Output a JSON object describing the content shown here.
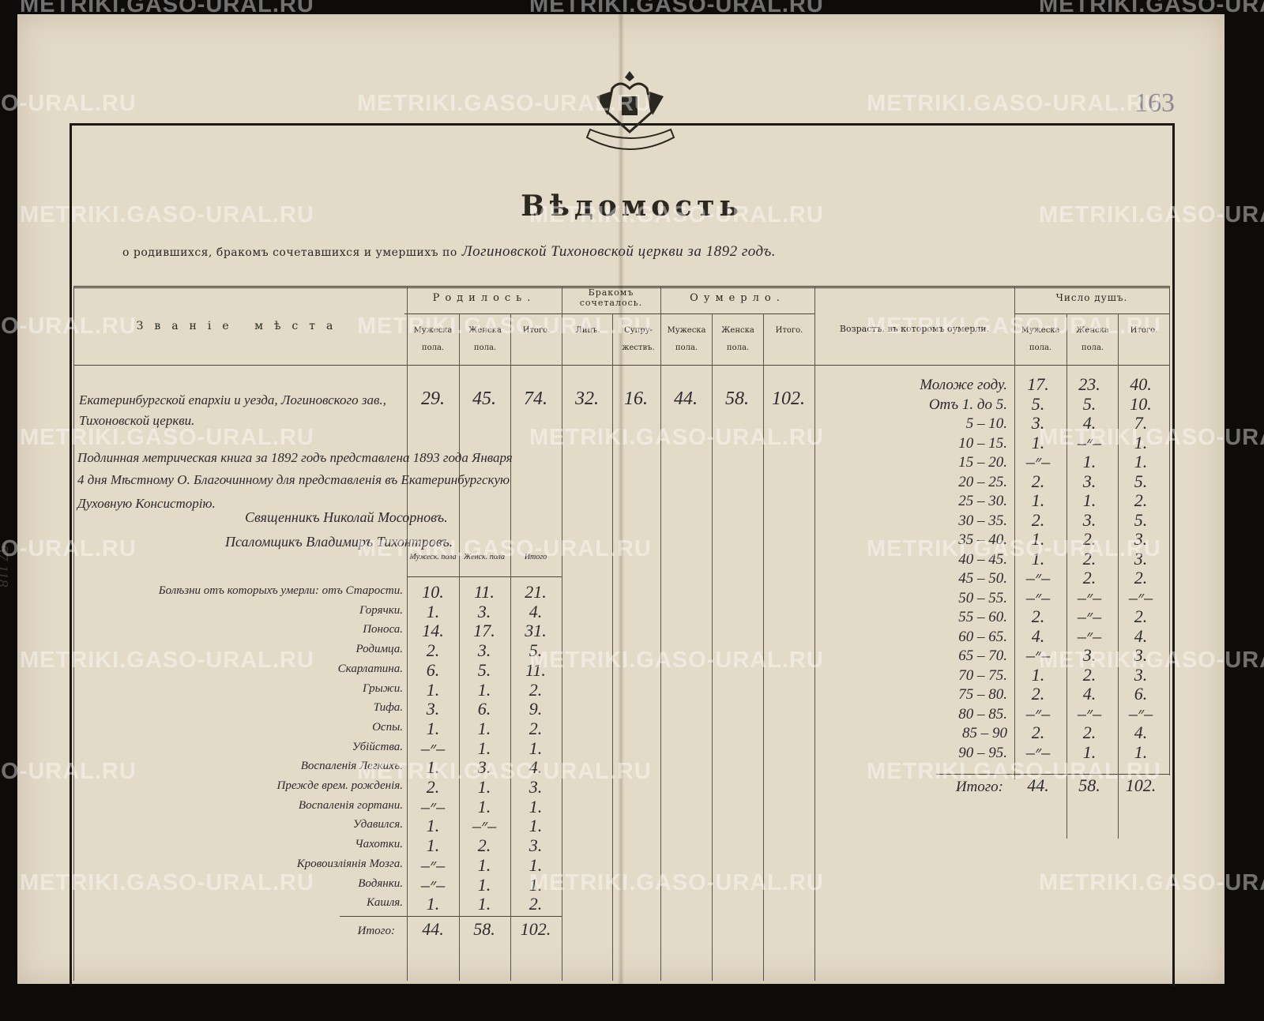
{
  "document": {
    "title": "Вѣдомость",
    "subtitle_printed": "о родившихся, бракомъ сочетавшихся и умершихъ по",
    "subtitle_handwritten": "Логиновской Тихоновской церкви за 1892 годъ.",
    "page_number": "163",
    "margin_note": "57 118",
    "emblem": "double-headed-eagle-seal",
    "watermark": "METRIKI.GASO-URAL.RU"
  },
  "table": {
    "place_header": "Званіе мѣста",
    "groups": {
      "born": "Родилось.",
      "married": "Бракомъ сочеталось.",
      "died": "Оумерло.",
      "age": "Возрастъ, въ которомъ оумерли.",
      "souls": "Число душъ."
    },
    "subheaders": {
      "male": "Мужеска пола.",
      "female": "Женска пола.",
      "total": "Итого.",
      "couples": "Лицъ.",
      "with_persons": "Супру-жествъ."
    },
    "place": "Екатеринбургской епархіи и уезда, Логиновского зав., Тихоновской церкви.",
    "main_values": {
      "born_male": "29.",
      "born_female": "45.",
      "born_total": "74.",
      "married_persons": "32.",
      "married_couples": "16.",
      "died_male": "44.",
      "died_female": "58.",
      "died_total": "102."
    },
    "note": [
      "Подлинная метрическая книга за 1892 годъ представлена 1893 года Января",
      "4 дня Мѣстному О. Благочинному для представленія въ Екатеринбургскую",
      "Духовную Консисторію."
    ],
    "signatures": [
      "Священникъ Николай Мосорновъ.",
      "Псаломщикъ Владимиръ Тихонтровъ."
    ],
    "disease_subheaders": [
      "Мужеск. пола",
      "Женск. пола",
      "Итого"
    ],
    "diseases": [
      {
        "name": "Болѣзни отъ которыхъ умерли: отъ Старости.",
        "m": "10.",
        "f": "11.",
        "t": "21."
      },
      {
        "name": "Горячки.",
        "m": "1.",
        "f": "3.",
        "t": "4."
      },
      {
        "name": "Поноса.",
        "m": "14.",
        "f": "17.",
        "t": "31."
      },
      {
        "name": "Родимца.",
        "m": "2.",
        "f": "3.",
        "t": "5."
      },
      {
        "name": "Скарлатина.",
        "m": "6.",
        "f": "5.",
        "t": "11."
      },
      {
        "name": "Грыжи.",
        "m": "1.",
        "f": "1.",
        "t": "2."
      },
      {
        "name": "Тифа.",
        "m": "3.",
        "f": "6.",
        "t": "9."
      },
      {
        "name": "Оспы.",
        "m": "1.",
        "f": "1.",
        "t": "2."
      },
      {
        "name": "Убійства.",
        "m": "–״–",
        "f": "1.",
        "t": "1."
      },
      {
        "name": "Воспаленія Легкихъ.",
        "m": "1.",
        "f": "3.",
        "t": "4."
      },
      {
        "name": "Прежде врем. рожденія.",
        "m": "2.",
        "f": "1.",
        "t": "3."
      },
      {
        "name": "Воспаленія гортани.",
        "m": "–״–",
        "f": "1.",
        "t": "1."
      },
      {
        "name": "Удавился.",
        "m": "1.",
        "f": "–״–",
        "t": "1."
      },
      {
        "name": "Чахотки.",
        "m": "1.",
        "f": "2.",
        "t": "3."
      },
      {
        "name": "Кровоизліянія Мозга.",
        "m": "–״–",
        "f": "1.",
        "t": "1."
      },
      {
        "name": "Водянки.",
        "m": "–״–",
        "f": "1.",
        "t": "1."
      },
      {
        "name": "Кашля.",
        "m": "1.",
        "f": "1.",
        "t": "2."
      }
    ],
    "disease_total": {
      "name": "Итого:",
      "m": "44.",
      "f": "58.",
      "t": "102."
    },
    "ages": [
      {
        "age": "Моложе году.",
        "m": "17.",
        "f": "23.",
        "t": "40."
      },
      {
        "age": "Отъ 1. до 5.",
        "m": "5.",
        "f": "5.",
        "t": "10."
      },
      {
        "age": "5 – 10.",
        "m": "3.",
        "f": "4.",
        "t": "7."
      },
      {
        "age": "10 – 15.",
        "m": "1.",
        "f": "–״–",
        "t": "1."
      },
      {
        "age": "15 – 20.",
        "m": "–״–",
        "f": "1.",
        "t": "1."
      },
      {
        "age": "20 – 25.",
        "m": "2.",
        "f": "3.",
        "t": "5."
      },
      {
        "age": "25 – 30.",
        "m": "1.",
        "f": "1.",
        "t": "2."
      },
      {
        "age": "30 – 35.",
        "m": "2.",
        "f": "3.",
        "t": "5."
      },
      {
        "age": "35 – 40.",
        "m": "1.",
        "f": "2.",
        "t": "3."
      },
      {
        "age": "40 – 45.",
        "m": "1.",
        "f": "2.",
        "t": "3."
      },
      {
        "age": "45 – 50.",
        "m": "–״–",
        "f": "2.",
        "t": "2."
      },
      {
        "age": "50 – 55.",
        "m": "–״–",
        "f": "–״–",
        "t": "–״–"
      },
      {
        "age": "55 – 60.",
        "m": "2.",
        "f": "–״–",
        "t": "2."
      },
      {
        "age": "60 – 65.",
        "m": "4.",
        "f": "–״–",
        "t": "4."
      },
      {
        "age": "65 – 70.",
        "m": "–״–",
        "f": "3.",
        "t": "3."
      },
      {
        "age": "70 – 75.",
        "m": "1.",
        "f": "2.",
        "t": "3."
      },
      {
        "age": "75 – 80.",
        "m": "2.",
        "f": "4.",
        "t": "6."
      },
      {
        "age": "80 – 85.",
        "m": "–״–",
        "f": "–״–",
        "t": "–״–"
      },
      {
        "age": "85 – 90",
        "m": "2.",
        "f": "2.",
        "t": "4."
      },
      {
        "age": "90 – 95.",
        "m": "–״–",
        "f": "1.",
        "t": "1."
      }
    ],
    "age_total": {
      "age": "Итого:",
      "m": "44.",
      "f": "58.",
      "t": "102."
    }
  }
}
